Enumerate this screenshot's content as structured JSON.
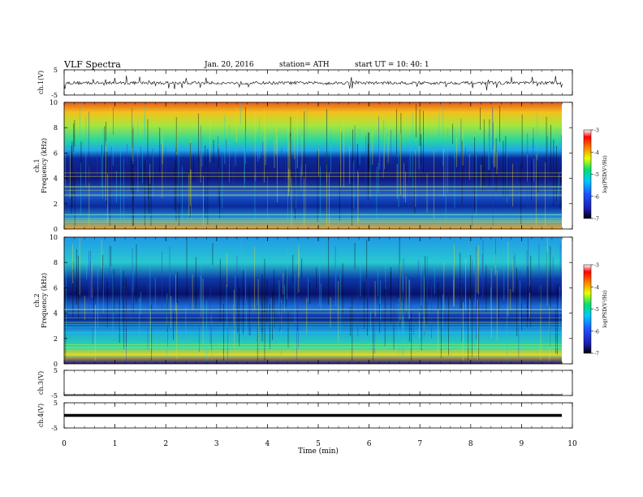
{
  "header": {
    "title": "VLF Spectra",
    "date": "Jan. 20, 2016",
    "station": "station= ATH",
    "start": "start  UT =   10: 40: 1"
  },
  "chart_data": [
    {
      "type": "line",
      "ylabel": "ch.1(V)",
      "ylim": [
        -5,
        5
      ],
      "y_ticks": [
        "5",
        "-5"
      ],
      "description_signal": "noisy waveform around -0.2 V",
      "x": [
        0,
        9.8
      ]
    },
    {
      "type": "heatmap",
      "ylabel": "ch.1",
      "ylabel2": "Frequency (kHz)",
      "ylim": [
        0,
        10
      ],
      "y_ticks": [
        "0",
        "2",
        "4",
        "6",
        "8",
        "10"
      ],
      "x": [
        0,
        9.8
      ],
      "colorbar": {
        "label": "log(PSD(V²/Hz)",
        "range": [
          -7,
          -3
        ],
        "ticks": [
          "-3",
          "-4",
          "-5",
          "-6",
          "-7"
        ]
      }
    },
    {
      "type": "heatmap",
      "ylabel": "ch.2",
      "ylabel2": "Frequency (kHz)",
      "ylim": [
        0,
        10
      ],
      "y_ticks": [
        "0",
        "2",
        "4",
        "6",
        "8",
        "10"
      ],
      "x": [
        0,
        9.8
      ],
      "colorbar": {
        "label": "log(PSD(V²/Hz)",
        "range": [
          -7,
          -3
        ],
        "ticks": [
          "-3",
          "-4",
          "-5",
          "-6",
          "-7"
        ]
      }
    },
    {
      "type": "line",
      "ylabel": "ch.3(V)",
      "ylim": [
        -5,
        5
      ],
      "y_ticks": [
        "5",
        "-5"
      ],
      "x": [
        0,
        9.8
      ]
    },
    {
      "type": "line",
      "ylabel": "ch.4(V)",
      "ylim": [
        -5,
        5
      ],
      "y_ticks": [
        "5",
        "-5"
      ],
      "x": [
        0,
        9.8
      ]
    }
  ],
  "x_axis": {
    "label": "Time (min)",
    "range": [
      0,
      10
    ],
    "ticks": [
      "0",
      "1",
      "2",
      "3",
      "4",
      "5",
      "6",
      "7",
      "8",
      "9",
      "10"
    ]
  }
}
